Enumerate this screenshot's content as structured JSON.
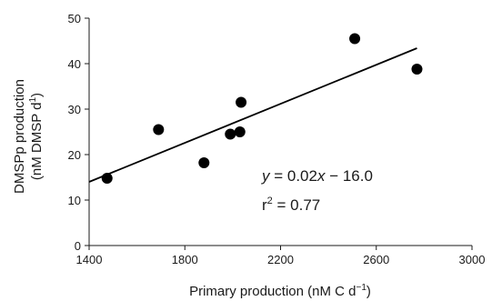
{
  "chart_data": {
    "type": "scatter",
    "xlabel": "Primary production (nM C d",
    "xlabel_sup": "−1",
    "xlabel_end": ")",
    "ylabel_line1": "DMSPp production",
    "ylabel_line2": "(nM DMSP d",
    "ylabel_sup": "1",
    "ylabel_end": ")",
    "xlim": [
      1400,
      3000
    ],
    "ylim": [
      0,
      50
    ],
    "xticks": [
      1400,
      1800,
      2200,
      2600,
      3000
    ],
    "yticks": [
      0,
      10,
      20,
      30,
      40,
      50
    ],
    "grid": false,
    "points": [
      {
        "x": 1475,
        "y": 14.8
      },
      {
        "x": 1690,
        "y": 25.5
      },
      {
        "x": 1880,
        "y": 18.2
      },
      {
        "x": 1990,
        "y": 24.5
      },
      {
        "x": 2030,
        "y": 25.0
      },
      {
        "x": 2035,
        "y": 31.5
      },
      {
        "x": 2510,
        "y": 45.5
      },
      {
        "x": 2770,
        "y": 38.8
      }
    ],
    "fit_line": {
      "x": [
        1400,
        2770
      ],
      "y": [
        14.0,
        43.4
      ]
    },
    "annotations": {
      "equation": {
        "y_part": "y",
        "mid": " = 0.02",
        "x_part": "x",
        "rest": " − 16.0"
      },
      "r2": {
        "r": "r",
        "sup": "2",
        "rest": " = 0.77"
      }
    }
  }
}
